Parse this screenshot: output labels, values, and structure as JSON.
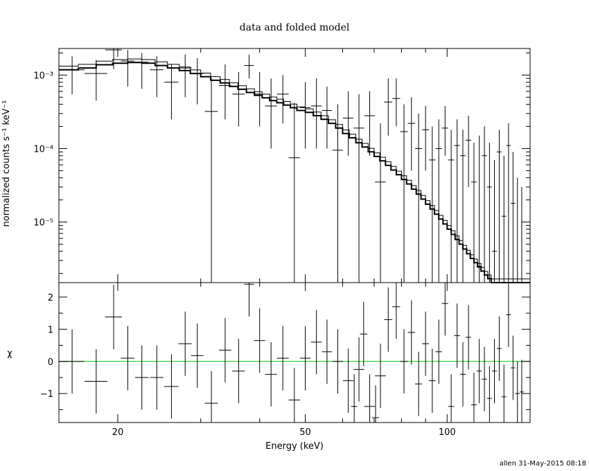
{
  "chart_data": [
    {
      "type": "line",
      "title": "data and folded model",
      "xlabel": "",
      "ylabel": "normalized counts s⁻¹ keV⁻¹",
      "x_scale": "log",
      "y_scale": "log",
      "xlim": [
        15,
        150
      ],
      "ylim": [
        1.5e-06,
        0.0023
      ],
      "y_tick_labels": [
        "10⁻³",
        "10⁻⁴",
        "10⁻⁵"
      ],
      "y_tick_values": [
        0.001,
        0.0001,
        1e-05
      ],
      "data_series": {
        "name": "data",
        "points": [
          {
            "x": 16.0,
            "xerr": 1.0,
            "y": 0.00118,
            "ylo": 0.00055,
            "yhi": 0.0018
          },
          {
            "x": 18.0,
            "xerr": 1.0,
            "y": 0.00105,
            "ylo": 0.00045,
            "yhi": 0.0016
          },
          {
            "x": 19.6,
            "xerr": 0.8,
            "y": 0.0022,
            "ylo": 0.0012,
            "yhi": 0.0023
          },
          {
            "x": 21.0,
            "xerr": 0.7,
            "y": 0.00155,
            "ylo": 0.0007,
            "yhi": 0.0022
          },
          {
            "x": 22.5,
            "xerr": 0.75,
            "y": 0.0015,
            "ylo": 0.00065,
            "yhi": 0.002
          },
          {
            "x": 24.2,
            "xerr": 0.8,
            "y": 0.00118,
            "ylo": 0.0005,
            "yhi": 0.0018
          },
          {
            "x": 26.0,
            "xerr": 0.9,
            "y": 0.0008,
            "ylo": 0.00025,
            "yhi": 0.0014
          },
          {
            "x": 27.8,
            "xerr": 0.9,
            "y": 0.00125,
            "ylo": 0.0005,
            "yhi": 0.0019
          },
          {
            "x": 29.5,
            "xerr": 0.9,
            "y": 0.00105,
            "ylo": 0.0004,
            "yhi": 0.0017
          },
          {
            "x": 31.6,
            "xerr": 1.0,
            "y": 0.00032,
            "ylo": 1.5e-06,
            "yhi": 0.0009
          },
          {
            "x": 33.8,
            "xerr": 1.0,
            "y": 0.00072,
            "ylo": 0.00025,
            "yhi": 0.0014
          },
          {
            "x": 36.1,
            "xerr": 1.1,
            "y": 0.00055,
            "ylo": 0.0002,
            "yhi": 0.0011
          },
          {
            "x": 38.0,
            "xerr": 0.9,
            "y": 0.00135,
            "ylo": 0.0009,
            "yhi": 0.0019
          },
          {
            "x": 40.0,
            "xerr": 1.1,
            "y": 0.00055,
            "ylo": 0.0002,
            "yhi": 0.0011
          },
          {
            "x": 42.3,
            "xerr": 1.2,
            "y": 0.00038,
            "ylo": 0.0001,
            "yhi": 0.0009
          },
          {
            "x": 44.8,
            "xerr": 1.3,
            "y": 0.00055,
            "ylo": 0.00022,
            "yhi": 0.001
          },
          {
            "x": 47.4,
            "xerr": 1.3,
            "y": 7.5e-05,
            "ylo": 1.5e-06,
            "yhi": 0.00042
          },
          {
            "x": 50.0,
            "xerr": 1.3,
            "y": 0.00036,
            "ylo": 0.0001,
            "yhi": 0.0008
          },
          {
            "x": 52.8,
            "xerr": 1.4,
            "y": 0.00038,
            "ylo": 0.0001,
            "yhi": 0.0009
          },
          {
            "x": 55.6,
            "xerr": 1.4,
            "y": 0.00033,
            "ylo": 0.0001,
            "yhi": 0.0007
          },
          {
            "x": 58.6,
            "xerr": 1.5,
            "y": 9.5e-05,
            "ylo": 1.5e-06,
            "yhi": 0.0004
          },
          {
            "x": 61.7,
            "xerr": 1.6,
            "y": 0.00026,
            "ylo": 8e-05,
            "yhi": 0.0006
          },
          {
            "x": 65.0,
            "xerr": 1.7,
            "y": 0.00019,
            "ylo": 1.5e-06,
            "yhi": 0.00055
          },
          {
            "x": 68.5,
            "xerr": 1.8,
            "y": 0.00028,
            "ylo": 8e-05,
            "yhi": 0.0006
          },
          {
            "x": 72.2,
            "xerr": 1.9,
            "y": 3.5e-05,
            "ylo": 1.5e-06,
            "yhi": 0.00022
          },
          {
            "x": 75.0,
            "xerr": 1.5,
            "y": 0.00043,
            "ylo": 0.00015,
            "yhi": 0.0009
          },
          {
            "x": 78.0,
            "xerr": 1.5,
            "y": 0.00048,
            "ylo": 0.0002,
            "yhi": 0.0009
          },
          {
            "x": 81.0,
            "xerr": 1.5,
            "y": 0.00017,
            "ylo": 1.5e-06,
            "yhi": 0.0004
          },
          {
            "x": 84.0,
            "xerr": 1.5,
            "y": 0.00022,
            "ylo": 5e-05,
            "yhi": 0.0005
          },
          {
            "x": 87.0,
            "xerr": 1.5,
            "y": 0.0001,
            "ylo": 1.5e-06,
            "yhi": 0.0003
          },
          {
            "x": 90.0,
            "xerr": 1.5,
            "y": 0.00018,
            "ylo": 5e-05,
            "yhi": 0.00038
          },
          {
            "x": 93.0,
            "xerr": 1.5,
            "y": 7e-05,
            "ylo": 1.5e-06,
            "yhi": 0.0002
          },
          {
            "x": 96.0,
            "xerr": 1.5,
            "y": 0.0001,
            "ylo": 1.5e-06,
            "yhi": 0.00025
          },
          {
            "x": 99.0,
            "xerr": 1.5,
            "y": 0.00019,
            "ylo": 8e-05,
            "yhi": 0.00038
          },
          {
            "x": 102.0,
            "xerr": 1.5,
            "y": 7e-05,
            "ylo": 1.5e-06,
            "yhi": 0.00018
          },
          {
            "x": 105.0,
            "xerr": 1.5,
            "y": 0.00011,
            "ylo": 1.5e-06,
            "yhi": 0.00025
          },
          {
            "x": 108.0,
            "xerr": 1.5,
            "y": 8e-05,
            "ylo": 1.5e-06,
            "yhi": 0.00018
          },
          {
            "x": 111.0,
            "xerr": 1.5,
            "y": 0.00013,
            "ylo": 3e-05,
            "yhi": 0.00028
          },
          {
            "x": 114.0,
            "xerr": 1.5,
            "y": 3.5e-05,
            "ylo": 1.5e-06,
            "yhi": 0.00012
          },
          {
            "x": 117.0,
            "xerr": 1.5,
            "y": 2.5e-06,
            "ylo": 1.5e-06,
            "yhi": 0.00015
          },
          {
            "x": 120.0,
            "xerr": 1.5,
            "y": 8e-05,
            "ylo": 1.5e-06,
            "yhi": 0.0002
          },
          {
            "x": 123.0,
            "xerr": 1.5,
            "y": 3e-05,
            "ylo": 1.5e-06,
            "yhi": 0.00012
          },
          {
            "x": 126.0,
            "xerr": 1.5,
            "y": 4e-06,
            "ylo": 1.5e-06,
            "yhi": 7e-05
          },
          {
            "x": 129.0,
            "xerr": 1.5,
            "y": 9e-05,
            "ylo": 1.5e-06,
            "yhi": 0.00018
          },
          {
            "x": 132.0,
            "xerr": 1.5,
            "y": 1.2e-05,
            "ylo": 1.5e-06,
            "yhi": 8e-05
          },
          {
            "x": 135.0,
            "xerr": 1.5,
            "y": 0.00011,
            "ylo": 1.5e-06,
            "yhi": 0.00022
          },
          {
            "x": 138.0,
            "xerr": 1.5,
            "y": 1.8e-05,
            "ylo": 1.5e-06,
            "yhi": 9e-05
          },
          {
            "x": 141.0,
            "xerr": 1.5,
            "y": 1.5e-06,
            "ylo": 1.5e-06,
            "yhi": 4e-05
          },
          {
            "x": 144.0,
            "xerr": 1.5,
            "y": 1.5e-06,
            "ylo": 1.5e-06,
            "yhi": 3e-05
          }
        ]
      },
      "model_series": {
        "name": "model",
        "edges": [
          15,
          16.5,
          18,
          19.5,
          21,
          22.5,
          24,
          25.5,
          27,
          28.5,
          30,
          31.5,
          33,
          34.5,
          36,
          37.5,
          39,
          40.5,
          42,
          43.5,
          45,
          46.5,
          48,
          50,
          52,
          54,
          56,
          58,
          60,
          62,
          64,
          66,
          68,
          70,
          72,
          74,
          76,
          78,
          80,
          82,
          84,
          86,
          88,
          90,
          92,
          94,
          96,
          98,
          100,
          102,
          104,
          106,
          108,
          110,
          112,
          114,
          116,
          118,
          120,
          122,
          124,
          126,
          128,
          130,
          132,
          134,
          136,
          138,
          140,
          142,
          144,
          146,
          148,
          150
        ],
        "values": [
          0.00118,
          0.00125,
          0.00138,
          0.00145,
          0.00148,
          0.00145,
          0.00135,
          0.00125,
          0.00115,
          0.00105,
          0.00095,
          0.00085,
          0.00078,
          0.0007,
          0.00064,
          0.00058,
          0.00053,
          0.00049,
          0.00045,
          0.00042,
          0.00039,
          0.00036,
          0.00033,
          0.00031,
          0.00028,
          0.00025,
          0.00022,
          0.00019,
          0.00016,
          0.00014,
          0.00012,
          0.000105,
          9e-05,
          7.8e-05,
          6.8e-05,
          5.9e-05,
          5.1e-05,
          4.4e-05,
          3.8e-05,
          3.3e-05,
          2.8e-05,
          2.4e-05,
          2.05e-05,
          1.75e-05,
          1.5e-05,
          1.28e-05,
          1.1e-05,
          9.4e-06,
          8e-06,
          6.8e-06,
          5.8e-06,
          5e-06,
          4.3e-06,
          3.7e-06,
          3.2e-06,
          2.8e-06,
          2.45e-06,
          2.15e-06,
          1.9e-06,
          1.7e-06,
          1.5e-06,
          1.5e-06,
          1.5e-06,
          1.5e-06,
          1.5e-06,
          1.5e-06,
          1.5e-06,
          1.5e-06,
          1.5e-06,
          1.5e-06,
          1.5e-06,
          1.5e-06,
          1.5e-06
        ]
      }
    },
    {
      "type": "scatter",
      "title": "",
      "xlabel": "Energy (keV)",
      "ylabel": "χ",
      "x_scale": "log",
      "xlim": [
        15,
        150
      ],
      "ylim": [
        -1.9,
        2.45
      ],
      "x_tick_labels": [
        "20",
        "50",
        "100"
      ],
      "x_tick_values": [
        20,
        50,
        100
      ],
      "y_tick_labels": [
        "−1",
        "0",
        "1",
        "2"
      ],
      "y_tick_values": [
        -1,
        0,
        1,
        2
      ],
      "zero_line_color": "#00cc00",
      "residuals": [
        {
          "x": 16.0,
          "xerr": 1.0,
          "y": 0.0,
          "yerr": 1.0
        },
        {
          "x": 18.0,
          "xerr": 1.0,
          "y": -0.62,
          "yerr": 1.0
        },
        {
          "x": 19.6,
          "xerr": 0.8,
          "y": 1.38,
          "yerr": 1.0
        },
        {
          "x": 21.0,
          "xerr": 0.7,
          "y": 0.1,
          "yerr": 1.0
        },
        {
          "x": 22.5,
          "xerr": 0.75,
          "y": -0.5,
          "yerr": 1.0
        },
        {
          "x": 24.2,
          "xerr": 0.8,
          "y": -0.5,
          "yerr": 1.0
        },
        {
          "x": 26.0,
          "xerr": 0.9,
          "y": -0.78,
          "yerr": 1.0
        },
        {
          "x": 27.8,
          "xerr": 0.9,
          "y": 0.55,
          "yerr": 1.0
        },
        {
          "x": 29.5,
          "xerr": 0.9,
          "y": 0.18,
          "yerr": 1.0
        },
        {
          "x": 31.6,
          "xerr": 1.0,
          "y": -1.3,
          "yerr": 1.0
        },
        {
          "x": 33.8,
          "xerr": 1.0,
          "y": 0.35,
          "yerr": 1.0
        },
        {
          "x": 36.1,
          "xerr": 1.1,
          "y": -0.3,
          "yerr": 1.0
        },
        {
          "x": 38.0,
          "xerr": 0.9,
          "y": 2.4,
          "yerr": 1.0
        },
        {
          "x": 40.0,
          "xerr": 1.1,
          "y": 0.65,
          "yerr": 1.0
        },
        {
          "x": 42.3,
          "xerr": 1.2,
          "y": -0.4,
          "yerr": 1.0
        },
        {
          "x": 44.8,
          "xerr": 1.3,
          "y": 0.1,
          "yerr": 1.0
        },
        {
          "x": 47.4,
          "xerr": 1.3,
          "y": -1.2,
          "yerr": 1.0
        },
        {
          "x": 50.0,
          "xerr": 1.3,
          "y": 0.1,
          "yerr": 1.0
        },
        {
          "x": 52.8,
          "xerr": 1.4,
          "y": 0.6,
          "yerr": 1.0
        },
        {
          "x": 55.6,
          "xerr": 1.4,
          "y": 0.3,
          "yerr": 1.0
        },
        {
          "x": 58.6,
          "xerr": 1.5,
          "y": 0.0,
          "yerr": 1.0
        },
        {
          "x": 61.7,
          "xerr": 1.6,
          "y": -0.6,
          "yerr": 1.0
        },
        {
          "x": 63.5,
          "xerr": 1.0,
          "y": -1.4,
          "yerr": 1.0
        },
        {
          "x": 65.0,
          "xerr": 1.7,
          "y": -0.25,
          "yerr": 1.0
        },
        {
          "x": 66.5,
          "xerr": 1.2,
          "y": 0.85,
          "yerr": 1.0
        },
        {
          "x": 68.5,
          "xerr": 1.8,
          "y": -1.4,
          "yerr": 1.0
        },
        {
          "x": 70.5,
          "xerr": 1.2,
          "y": -1.75,
          "yerr": 1.0
        },
        {
          "x": 72.2,
          "xerr": 1.9,
          "y": -0.45,
          "yerr": 1.0
        },
        {
          "x": 75.0,
          "xerr": 1.5,
          "y": 1.3,
          "yerr": 1.0
        },
        {
          "x": 78.0,
          "xerr": 1.5,
          "y": 1.7,
          "yerr": 1.0
        },
        {
          "x": 81.0,
          "xerr": 1.5,
          "y": 0.0,
          "yerr": 1.0
        },
        {
          "x": 84.0,
          "xerr": 1.5,
          "y": 0.9,
          "yerr": 1.0
        },
        {
          "x": 87.0,
          "xerr": 1.5,
          "y": -0.7,
          "yerr": 1.0
        },
        {
          "x": 90.0,
          "xerr": 1.5,
          "y": 0.55,
          "yerr": 1.0
        },
        {
          "x": 93.0,
          "xerr": 1.5,
          "y": -0.6,
          "yerr": 1.0
        },
        {
          "x": 96.0,
          "xerr": 1.5,
          "y": 0.3,
          "yerr": 1.0
        },
        {
          "x": 99.0,
          "xerr": 1.5,
          "y": 1.8,
          "yerr": 1.0
        },
        {
          "x": 102.0,
          "xerr": 1.5,
          "y": -1.4,
          "yerr": 1.0
        },
        {
          "x": 105.0,
          "xerr": 1.5,
          "y": 0.8,
          "yerr": 1.0
        },
        {
          "x": 108.0,
          "xerr": 1.5,
          "y": -0.4,
          "yerr": 1.0
        },
        {
          "x": 111.0,
          "xerr": 1.5,
          "y": 0.75,
          "yerr": 1.0
        },
        {
          "x": 114.0,
          "xerr": 1.5,
          "y": -1.35,
          "yerr": 1.0
        },
        {
          "x": 117.0,
          "xerr": 1.5,
          "y": -0.3,
          "yerr": 1.0
        },
        {
          "x": 120.0,
          "xerr": 1.5,
          "y": -0.55,
          "yerr": 1.0
        },
        {
          "x": 123.0,
          "xerr": 1.5,
          "y": -1.15,
          "yerr": 1.0
        },
        {
          "x": 126.0,
          "xerr": 1.5,
          "y": -0.3,
          "yerr": 1.0
        },
        {
          "x": 129.0,
          "xerr": 1.5,
          "y": 0.4,
          "yerr": 1.0
        },
        {
          "x": 132.0,
          "xerr": 1.5,
          "y": -1.1,
          "yerr": 1.0
        },
        {
          "x": 135.0,
          "xerr": 1.5,
          "y": 1.45,
          "yerr": 1.0
        },
        {
          "x": 138.0,
          "xerr": 1.5,
          "y": -0.2,
          "yerr": 1.0
        },
        {
          "x": 141.0,
          "xerr": 1.5,
          "y": -1.0,
          "yerr": 1.0
        },
        {
          "x": 144.0,
          "xerr": 1.5,
          "y": -0.95,
          "yerr": 1.0
        }
      ]
    }
  ],
  "footer": {
    "stamp": "allen 31-May-2015 08:18"
  }
}
